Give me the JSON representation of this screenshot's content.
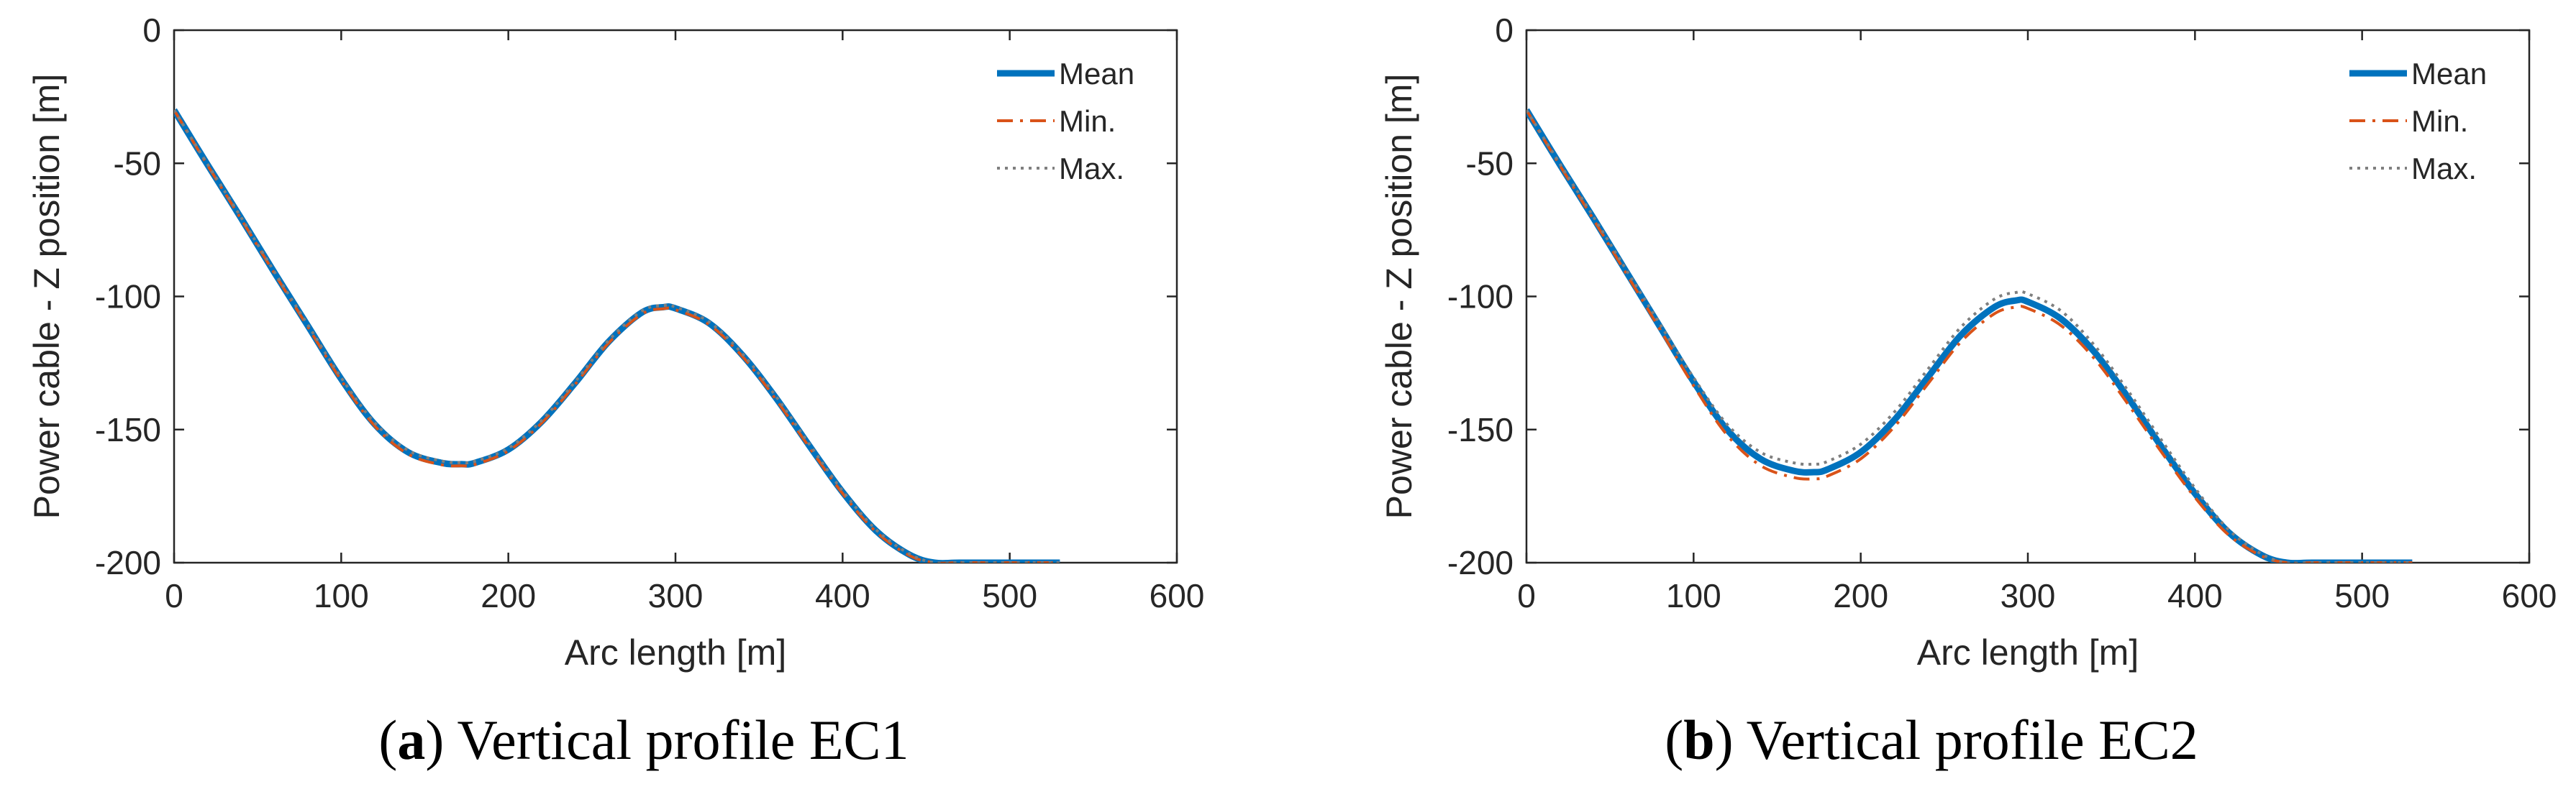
{
  "chart_data": [
    {
      "type": "line",
      "id": "a",
      "caption_letter": "a",
      "caption_text": "Vertical profile EC1",
      "xlabel": "Arc length [m]",
      "ylabel": "Power cable - Z position [m]",
      "xlim": [
        0,
        600
      ],
      "ylim": [
        -200,
        0
      ],
      "xticks": [
        0,
        100,
        200,
        300,
        400,
        500,
        600
      ],
      "xtick_labels": [
        "0",
        "100",
        "200",
        "300",
        "400",
        "500",
        "600"
      ],
      "yticks": [
        0,
        -50,
        -100,
        -150,
        -200
      ],
      "ytick_labels": [
        "0",
        "-50",
        "-100",
        "-150",
        "-200"
      ],
      "legend_position": "top-right",
      "x": [
        0,
        20,
        40,
        60,
        80,
        100,
        120,
        140,
        160,
        172,
        180,
        200,
        220,
        240,
        260,
        280,
        293,
        300,
        320,
        340,
        360,
        380,
        400,
        420,
        440,
        455,
        470,
        500,
        530
      ],
      "series": [
        {
          "name": "Mean",
          "color": "#0072BD",
          "dash": "solid",
          "width": 9,
          "values": [
            -30,
            -50.5,
            -70.5,
            -91,
            -111,
            -131,
            -148,
            -158.5,
            -162.5,
            -163,
            -162.5,
            -157.5,
            -147,
            -132.5,
            -117,
            -106,
            -104,
            -104.5,
            -110,
            -122,
            -138,
            -156,
            -173.5,
            -188,
            -197,
            -200,
            -200,
            -200,
            -200
          ]
        },
        {
          "name": "Min.",
          "color": "#D95319",
          "dash": "dashdot",
          "width": 4,
          "values": [
            -30,
            -50.7,
            -70.8,
            -91.3,
            -111.4,
            -131.5,
            -148.6,
            -159.2,
            -163.2,
            -163.6,
            -163.1,
            -158,
            -147.5,
            -133,
            -117.5,
            -106.6,
            -104.6,
            -105,
            -110.5,
            -122.5,
            -138.6,
            -156.6,
            -174,
            -188.4,
            -197.3,
            -200,
            -200,
            -200,
            -200
          ]
        },
        {
          "name": "Max.",
          "color": "#7f7f7f",
          "dash": "dotted",
          "width": 4,
          "values": [
            -30,
            -50.3,
            -70.2,
            -90.7,
            -110.6,
            -130.5,
            -147.4,
            -157.8,
            -161.8,
            -162.4,
            -161.9,
            -157,
            -146.5,
            -132,
            -116.5,
            -105.4,
            -103.4,
            -104,
            -109.5,
            -121.5,
            -137.4,
            -155.4,
            -173,
            -187.6,
            -196.7,
            -200,
            -200,
            -200,
            -200
          ]
        }
      ]
    },
    {
      "type": "line",
      "id": "b",
      "caption_letter": "b",
      "caption_text": "Vertical profile EC2",
      "xlabel": "Arc length [m]",
      "ylabel": "Power cable - Z position [m]",
      "xlim": [
        0,
        600
      ],
      "ylim": [
        -200,
        0
      ],
      "xticks": [
        0,
        100,
        200,
        300,
        400,
        500,
        600
      ],
      "xtick_labels": [
        "0",
        "100",
        "200",
        "300",
        "400",
        "500",
        "600"
      ],
      "yticks": [
        0,
        -50,
        -100,
        -150,
        -200
      ],
      "ytick_labels": [
        "0",
        "-50",
        "-100",
        "-150",
        "-200"
      ],
      "legend_position": "top-right",
      "x": [
        0,
        20,
        40,
        60,
        80,
        100,
        120,
        140,
        160,
        172,
        180,
        200,
        220,
        240,
        260,
        280,
        293,
        300,
        320,
        340,
        360,
        380,
        400,
        420,
        440,
        455,
        470,
        500,
        530
      ],
      "series": [
        {
          "name": "Mean",
          "color": "#0072BD",
          "dash": "solid",
          "width": 9,
          "values": [
            -30,
            -50.5,
            -70.5,
            -91,
            -111.5,
            -132,
            -150,
            -161,
            -165.5,
            -166,
            -165,
            -158.5,
            -146.5,
            -130.5,
            -114.5,
            -104,
            -101.5,
            -102,
            -108.5,
            -121,
            -138,
            -156.5,
            -174,
            -188.5,
            -197.2,
            -200,
            -200,
            -200,
            -200
          ]
        },
        {
          "name": "Min.",
          "color": "#D95319",
          "dash": "dashdot",
          "width": 4,
          "values": [
            -30,
            -50.8,
            -71,
            -91.7,
            -112.5,
            -133.5,
            -152,
            -163.5,
            -168,
            -168.5,
            -167.5,
            -161,
            -149,
            -133,
            -117,
            -106.5,
            -104,
            -104.5,
            -111,
            -123.5,
            -140.5,
            -158.5,
            -175.5,
            -189.5,
            -197.5,
            -200,
            -200,
            -200,
            -200
          ]
        },
        {
          "name": "Max.",
          "color": "#7f7f7f",
          "dash": "dotted",
          "width": 4,
          "values": [
            -30,
            -50.2,
            -70,
            -90.3,
            -110.5,
            -130.5,
            -148,
            -158.5,
            -162.5,
            -163,
            -162,
            -155.5,
            -143.5,
            -127.5,
            -111.5,
            -101,
            -98.5,
            -99,
            -105.5,
            -118.5,
            -135.5,
            -154,
            -172,
            -187.5,
            -196.8,
            -200,
            -200,
            -200,
            -200
          ]
        }
      ]
    }
  ]
}
